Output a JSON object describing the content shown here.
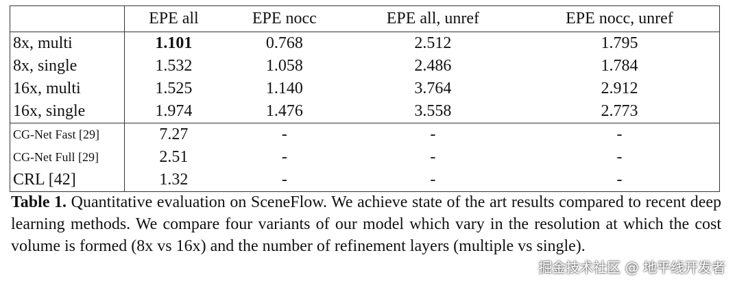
{
  "table": {
    "header": [
      "EPE all",
      "EPE nocc",
      "EPE all, unref",
      "EPE nocc, unref"
    ],
    "groups": [
      [
        [
          "8x, multi",
          "1.101",
          "0.768",
          "2.512",
          "1.795"
        ],
        [
          "8x, single",
          "1.532",
          "1.058",
          "2.486",
          "1.784"
        ],
        [
          "16x, multi",
          "1.525",
          "1.140",
          "3.764",
          "2.912"
        ],
        [
          "16x, single",
          "1.974",
          "1.476",
          "3.558",
          "2.773"
        ]
      ],
      [
        [
          "CG-Net Fast [29]",
          "7.27",
          "-",
          "-",
          "-"
        ],
        [
          "CG-Net Full [29]",
          "2.51",
          "-",
          "-",
          "-"
        ],
        [
          "CRL [42]",
          "1.32",
          "-",
          "-",
          "-"
        ]
      ]
    ]
  },
  "caption": {
    "label": "Table 1.",
    "text": "Quantitative evaluation on SceneFlow. We achieve state of the art results compared to recent deep learning methods. We compare four variants of our model which vary in the resolution at which the cost volume is formed (8x vs 16x) and the number of refinement layers (multiple vs single)."
  },
  "watermark": "掘金技术社区 @ 地平线开发者"
}
